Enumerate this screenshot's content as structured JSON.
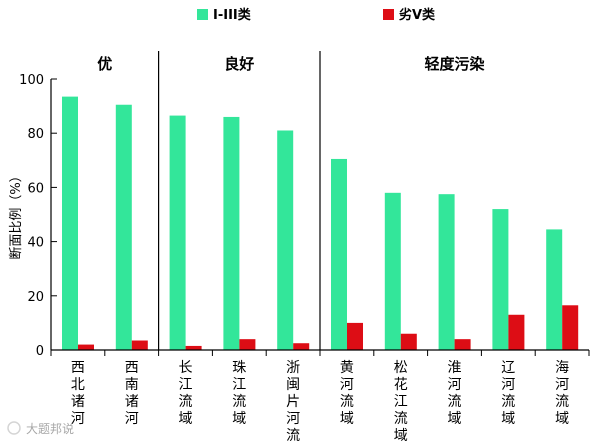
{
  "chart_data": {
    "type": "bar",
    "ylabel": "断面比例（%）",
    "ylim": [
      0,
      100
    ],
    "yticks": [
      0,
      20,
      40,
      60,
      80,
      100
    ],
    "categories": [
      "西北诸河",
      "西南诸河",
      "长江流域",
      "珠江流域",
      "浙闽片河流",
      "黄河流域",
      "松花江流域",
      "淮河流域",
      "辽河流域",
      "海河流域"
    ],
    "series": [
      {
        "name": "I-III类",
        "color": "#33e69a",
        "values": [
          93.5,
          90.5,
          86.5,
          86,
          81,
          70.5,
          58,
          57.5,
          52,
          44.5
        ]
      },
      {
        "name": "劣V类",
        "color": "#dd0d15",
        "values": [
          2,
          3.5,
          1.5,
          4,
          2.5,
          10,
          6,
          4,
          13,
          16.5
        ]
      }
    ],
    "groups": [
      {
        "label": "优",
        "categories": [
          "西北诸河",
          "西南诸河"
        ]
      },
      {
        "label": "良好",
        "categories": [
          "长江流域",
          "珠江流域",
          "浙闽片河流"
        ]
      },
      {
        "label": "轻度污染",
        "categories": [
          "黄河流域",
          "松花江流域",
          "淮河流域",
          "辽河流域",
          "海河流域"
        ]
      }
    ],
    "legend_position": "top-center",
    "grid": false
  },
  "watermark": "大题邦说"
}
